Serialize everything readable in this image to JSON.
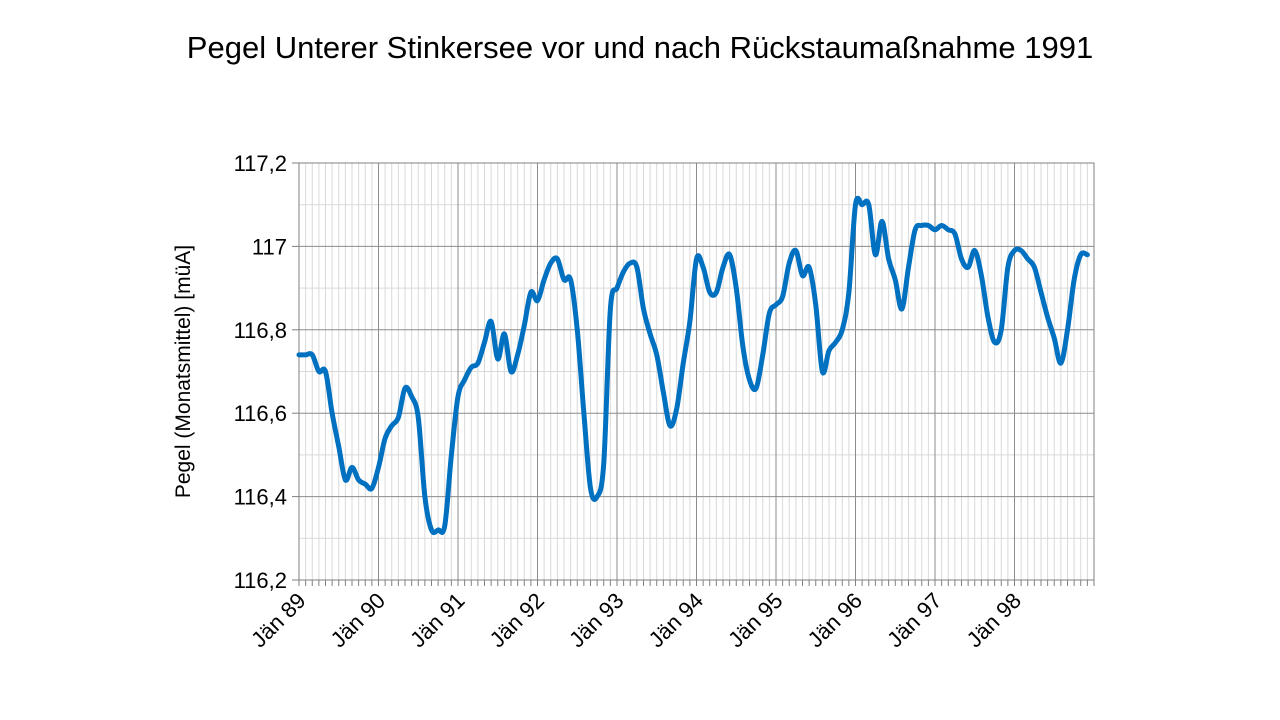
{
  "chart_data": {
    "type": "line",
    "title": "Pegel Unterer Stinkersee vor und nach Rückstaumaßnahme 1991",
    "xlabel": "",
    "ylabel": "Pegel (Monatsmittel) [müA]",
    "ylim": [
      116.2,
      117.2
    ],
    "y_ticks": [
      "116,2",
      "116,4",
      "116,6",
      "116,8",
      "117",
      "117,2"
    ],
    "y_tick_values": [
      116.2,
      116.4,
      116.6,
      116.8,
      117.0,
      117.2
    ],
    "x_tick_labels": [
      "Jän 89",
      "Jän 90",
      "Jän 91",
      "Jän 92",
      "Jän 93",
      "Jän 94",
      "Jän 95",
      "Jän 96",
      "Jän 97",
      "Jän 98"
    ],
    "x_start": "1989-01",
    "months": 120,
    "grid": true,
    "series": [
      {
        "name": "Pegel",
        "color": "#0070C0",
        "values": [
          116.74,
          116.74,
          116.74,
          116.7,
          116.7,
          116.6,
          116.52,
          116.44,
          116.47,
          116.44,
          116.43,
          116.42,
          116.47,
          116.54,
          116.57,
          116.59,
          116.66,
          116.64,
          116.59,
          116.4,
          116.32,
          116.32,
          116.33,
          116.5,
          116.64,
          116.68,
          116.71,
          116.72,
          116.77,
          116.82,
          116.73,
          116.79,
          116.7,
          116.74,
          116.81,
          116.89,
          116.87,
          116.92,
          116.96,
          116.97,
          116.92,
          116.92,
          116.8,
          116.6,
          116.42,
          116.4,
          116.48,
          116.85,
          116.9,
          116.94,
          116.96,
          116.95,
          116.85,
          116.79,
          116.74,
          116.65,
          116.57,
          116.61,
          116.72,
          116.82,
          116.97,
          116.95,
          116.89,
          116.89,
          116.95,
          116.98,
          116.9,
          116.76,
          116.68,
          116.66,
          116.74,
          116.84,
          116.86,
          116.88,
          116.96,
          116.99,
          116.93,
          116.95,
          116.86,
          116.7,
          116.75,
          116.77,
          116.8,
          116.89,
          117.1,
          117.1,
          117.1,
          116.98,
          117.06,
          116.97,
          116.92,
          116.85,
          116.95,
          117.04,
          117.05,
          117.05,
          117.04,
          117.05,
          117.04,
          117.03,
          116.97,
          116.95,
          116.99,
          116.93,
          116.83,
          116.77,
          116.8,
          116.95,
          116.99,
          116.99,
          116.97,
          116.95,
          116.89,
          116.83,
          116.78,
          116.72,
          116.8,
          116.92,
          116.98,
          116.98
        ]
      }
    ]
  }
}
